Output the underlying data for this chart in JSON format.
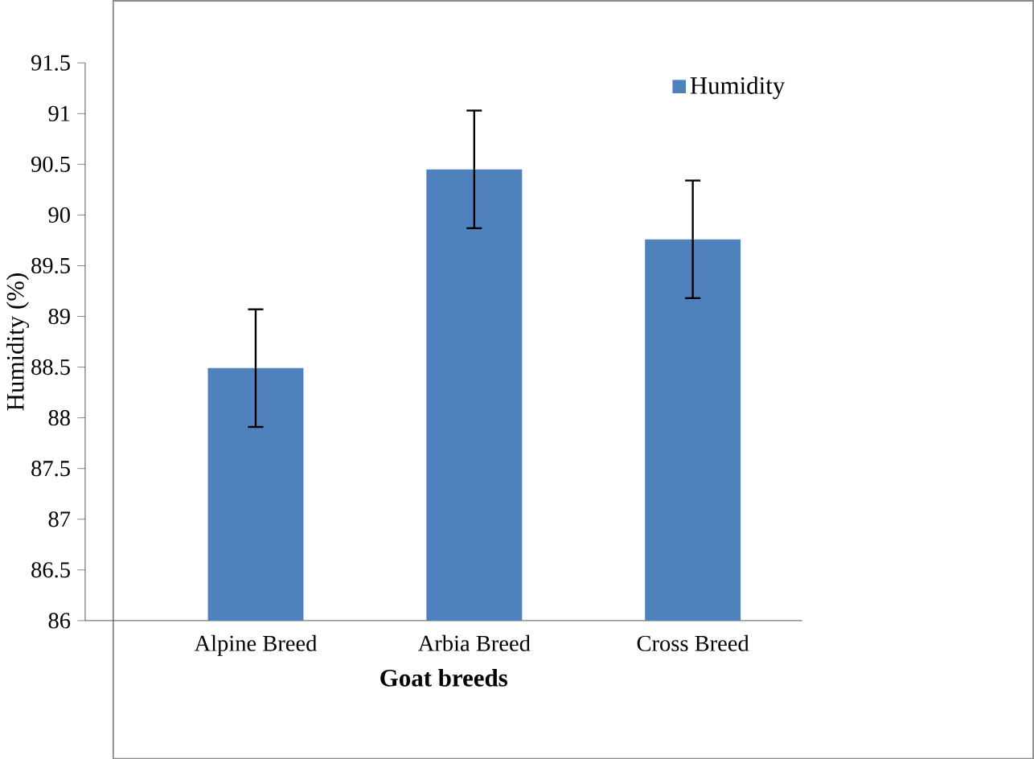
{
  "chart_data": {
    "type": "bar",
    "xlabel": "Goat breeds",
    "ylabel": "Humidity (%)",
    "categories": [
      "Alpine Breed",
      "Arbia Breed",
      "Cross Breed"
    ],
    "series": [
      {
        "name": "Humidity",
        "color": "#4f81bd",
        "values": [
          88.49,
          90.45,
          89.76
        ],
        "errors": [
          0.58,
          0.58,
          0.58
        ]
      }
    ],
    "ylim": [
      86,
      91.5
    ],
    "yticks": [
      86,
      86.5,
      87,
      87.5,
      88,
      88.5,
      89,
      89.5,
      90,
      90.5,
      91,
      91.5
    ],
    "legend": "top right",
    "grid": false
  }
}
